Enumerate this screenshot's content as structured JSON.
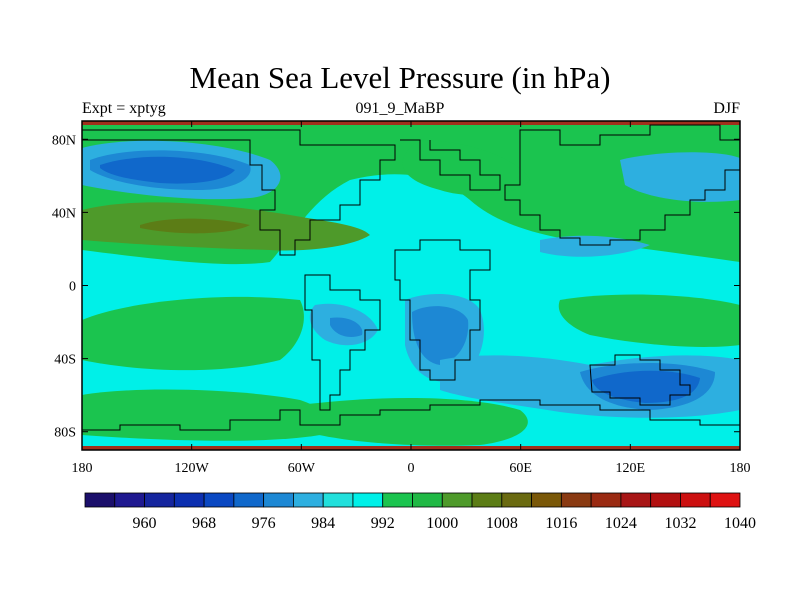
{
  "title": "Mean Sea Level Pressure (in hPa)",
  "subtitle_left": "Expt = xptyg",
  "subtitle_center": "091_9_MaBP",
  "subtitle_right": "DJF",
  "x_axis": {
    "range": [
      -180,
      180
    ],
    "ticks": [
      {
        "value": -180,
        "label": "180"
      },
      {
        "value": -120,
        "label": "120W"
      },
      {
        "value": -60,
        "label": "60W"
      },
      {
        "value": 0,
        "label": "0"
      },
      {
        "value": 60,
        "label": "60E"
      },
      {
        "value": 120,
        "label": "120E"
      },
      {
        "value": 180,
        "label": "180"
      }
    ]
  },
  "y_axis": {
    "range": [
      -90,
      90
    ],
    "ticks": [
      {
        "value": 80,
        "label": "80N"
      },
      {
        "value": 40,
        "label": "40N"
      },
      {
        "value": 0,
        "label": "0"
      },
      {
        "value": -40,
        "label": "40S"
      },
      {
        "value": -80,
        "label": "80S"
      }
    ]
  },
  "colorbar": {
    "colors": [
      "#1b0f6b",
      "#1f1990",
      "#15259e",
      "#0c2fb0",
      "#0a48c2",
      "#1068cb",
      "#1d88d4",
      "#2dafe0",
      "#22e0dc",
      "#00f0e8",
      "#1bc44f",
      "#20b845",
      "#4e9a2a",
      "#5c7d16",
      "#6a6a10",
      "#7a5808",
      "#8a3a12",
      "#9a2a12",
      "#a81616",
      "#b21010",
      "#cc1010",
      "#de1212"
    ],
    "labels": [
      {
        "after_index": 1,
        "text": "960"
      },
      {
        "after_index": 3,
        "text": "968"
      },
      {
        "after_index": 5,
        "text": "976"
      },
      {
        "after_index": 7,
        "text": "984"
      },
      {
        "after_index": 9,
        "text": "992"
      },
      {
        "after_index": 11,
        "text": "1000"
      },
      {
        "after_index": 13,
        "text": "1008"
      },
      {
        "after_index": 15,
        "text": "1016"
      },
      {
        "after_index": 17,
        "text": "1024"
      },
      {
        "after_index": 19,
        "text": "1032"
      },
      {
        "after_index": 21,
        "text": "1040"
      }
    ]
  },
  "field_colors": {
    "background": "#00f0e8",
    "green": "#1bc44f",
    "olive": "#4e9a2a",
    "dark_olive": "#5c7d16",
    "light_blue": "#2dafe0",
    "mid_blue": "#1d88d4",
    "blue": "#1068cb",
    "brown_band": "#a0301c"
  }
}
